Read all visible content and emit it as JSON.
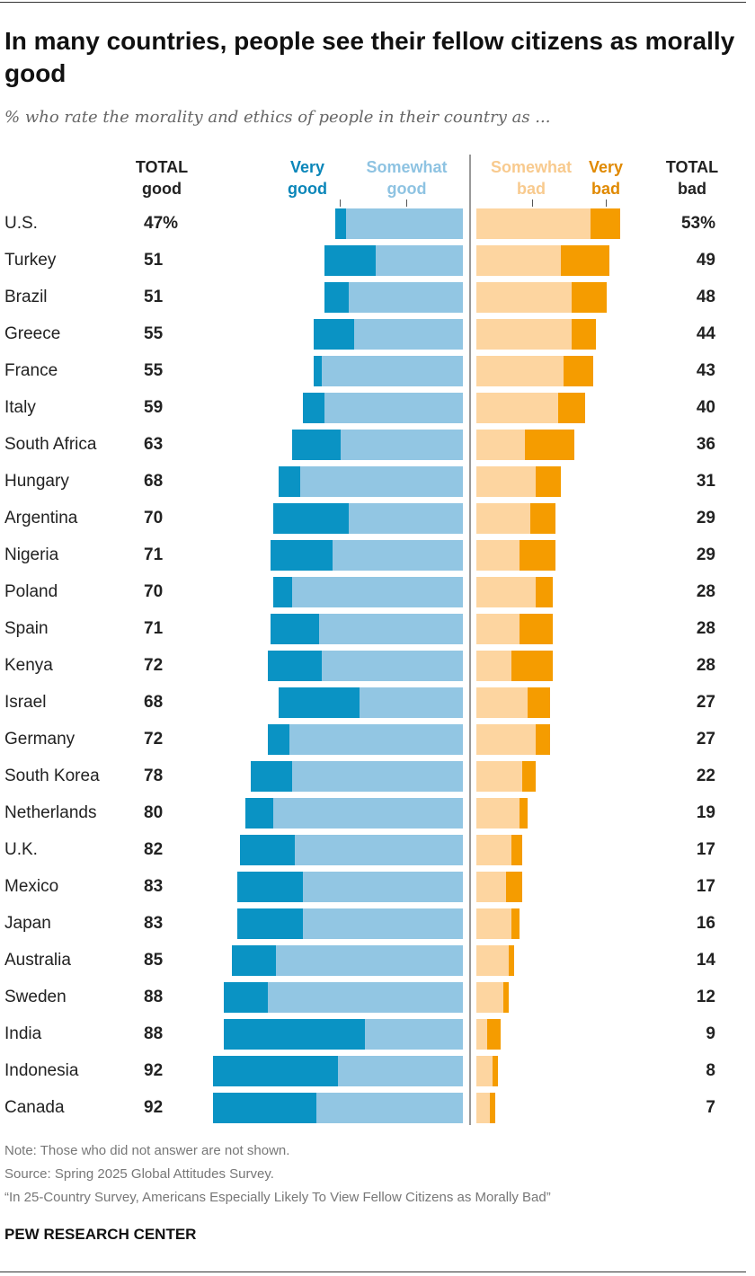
{
  "title": "In many countries, people see their fellow citizens as morally good",
  "subtitle": "% who rate the morality and ethics of people in their country as ...",
  "headers": {
    "total_good": [
      "TOTAL",
      "good"
    ],
    "very_good": [
      "Very",
      "good"
    ],
    "somewhat_good": [
      "Somewhat",
      "good"
    ],
    "somewhat_bad": [
      "Somewhat",
      "bad"
    ],
    "very_bad": [
      "Very",
      "bad"
    ],
    "total_bad": [
      "TOTAL",
      "bad"
    ]
  },
  "colors": {
    "very_good": "#0a93c4",
    "somewhat_good": "#92c6e3",
    "somewhat_bad": "#fdd5a0",
    "very_bad": "#f59c00",
    "very_good_label": "#0a86b9",
    "somewhat_good_label": "#8ec3e2",
    "somewhat_bad_label": "#f8ca8e",
    "very_bad_label": "#e08900"
  },
  "chart_data": {
    "type": "bar",
    "orientation": "horizontal diverging stacked",
    "categories": [
      "U.S.",
      "Turkey",
      "Brazil",
      "Greece",
      "France",
      "Italy",
      "South Africa",
      "Hungary",
      "Argentina",
      "Nigeria",
      "Poland",
      "Spain",
      "Kenya",
      "Israel",
      "Germany",
      "South Korea",
      "Netherlands",
      "U.K.",
      "Mexico",
      "Japan",
      "Australia",
      "Sweden",
      "India",
      "Indonesia",
      "Canada"
    ],
    "series": [
      {
        "name": "Very good",
        "values": [
          4,
          19,
          9,
          15,
          3,
          8,
          18,
          8,
          28,
          23,
          7,
          18,
          20,
          30,
          8,
          15,
          10,
          20,
          24,
          24,
          16,
          16,
          52,
          46,
          38
        ]
      },
      {
        "name": "Somewhat good",
        "values": [
          43,
          32,
          42,
          40,
          52,
          51,
          45,
          60,
          42,
          48,
          63,
          53,
          52,
          38,
          64,
          63,
          70,
          62,
          59,
          59,
          69,
          72,
          36,
          46,
          54
        ]
      },
      {
        "name": "Somewhat bad",
        "values": [
          42,
          31,
          35,
          35,
          32,
          30,
          18,
          22,
          20,
          16,
          22,
          16,
          13,
          19,
          22,
          17,
          16,
          13,
          11,
          13,
          12,
          10,
          4,
          6,
          5
        ]
      },
      {
        "name": "Very bad",
        "values": [
          11,
          18,
          13,
          9,
          11,
          10,
          18,
          9,
          9,
          13,
          6,
          12,
          15,
          8,
          5,
          5,
          3,
          4,
          6,
          3,
          2,
          2,
          5,
          2,
          2
        ]
      }
    ],
    "total_good_labels": [
      "47%",
      "51",
      "51",
      "55",
      "55",
      "59",
      "63",
      "68",
      "70",
      "71",
      "70",
      "71",
      "72",
      "68",
      "72",
      "78",
      "80",
      "82",
      "83",
      "83",
      "85",
      "88",
      "88",
      "92",
      "92"
    ],
    "total_bad_labels": [
      "53%",
      "49",
      "48",
      "44",
      "43",
      "40",
      "36",
      "31",
      "29",
      "29",
      "28",
      "28",
      "28",
      "27",
      "27",
      "22",
      "19",
      "17",
      "17",
      "16",
      "14",
      "12",
      "9",
      "8",
      "7"
    ]
  },
  "notes": [
    "Note: Those who did not answer are not shown.",
    "Source: Spring 2025 Global Attitudes Survey.",
    "“In 25-Country Survey, Americans Especially Likely To View Fellow Citizens as Morally Bad”"
  ],
  "brand": "PEW RESEARCH CENTER"
}
